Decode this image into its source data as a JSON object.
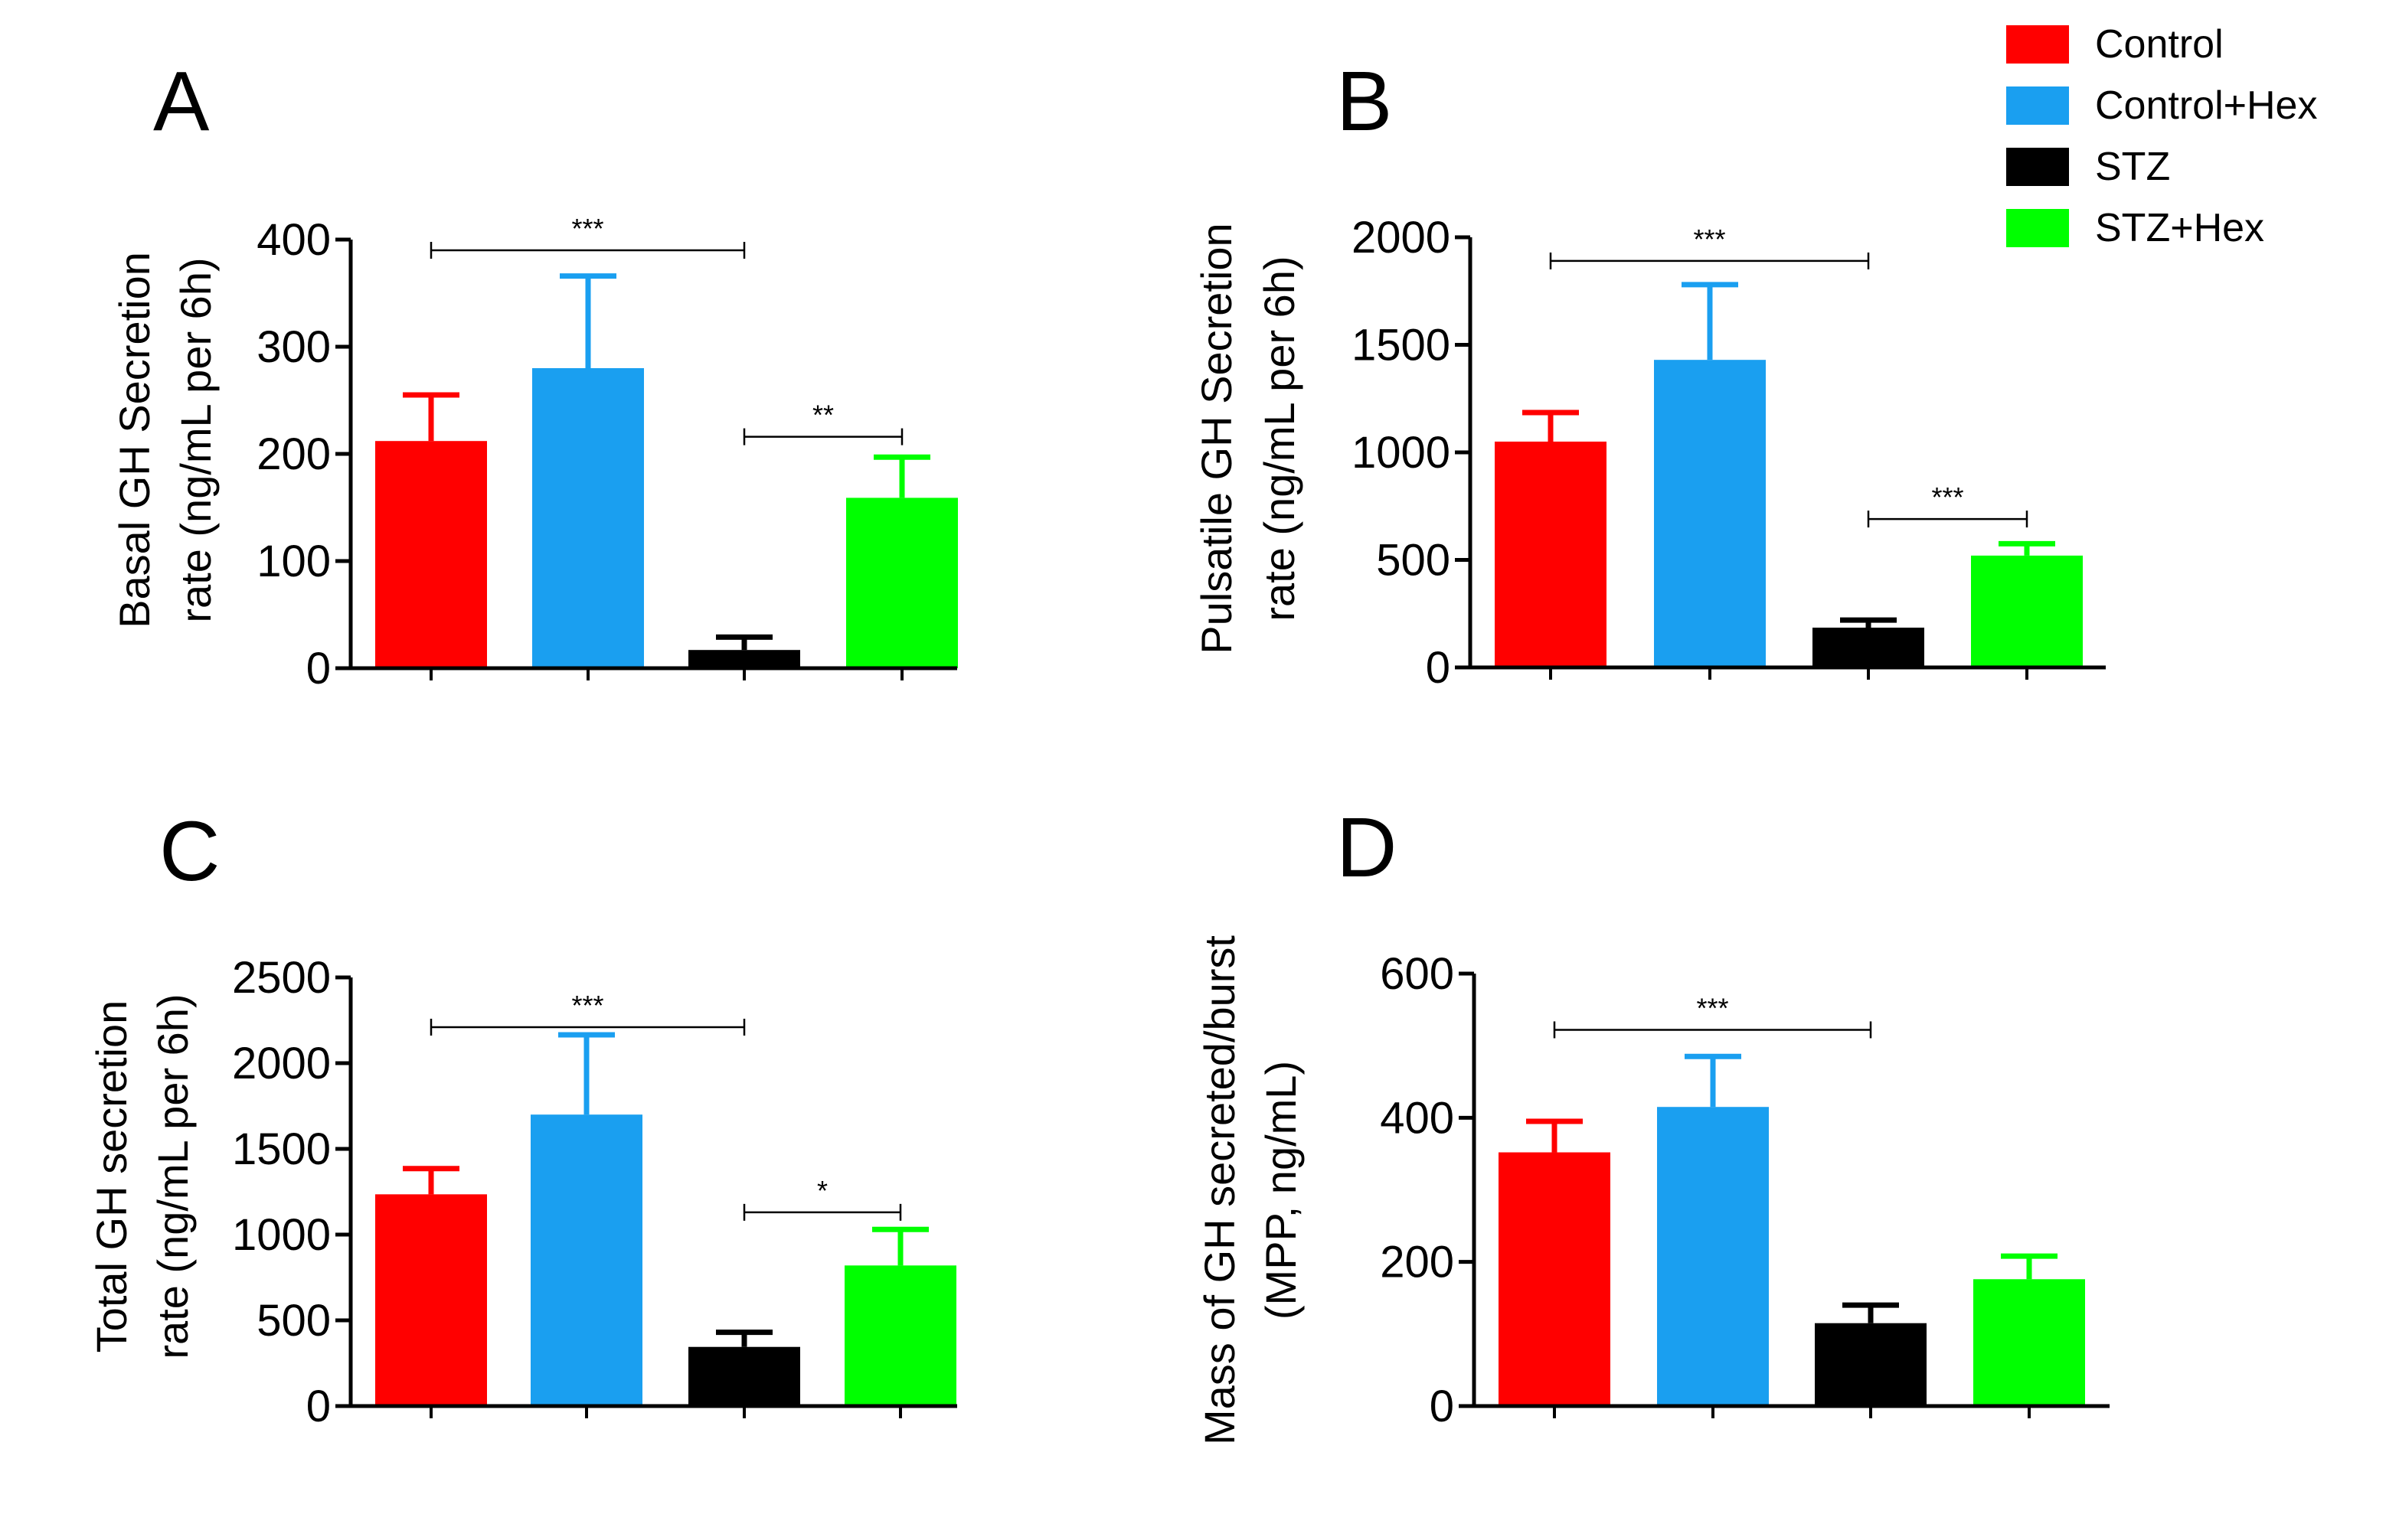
{
  "legend": {
    "items": [
      {
        "label": "Control",
        "color": "#ff0000"
      },
      {
        "label": "Control+Hex",
        "color": "#1a9ff0"
      },
      {
        "label": "STZ",
        "color": "#000000"
      },
      {
        "label": "STZ+Hex",
        "color": "#00ff00"
      }
    ]
  },
  "chart_data": [
    {
      "panel": "A",
      "type": "bar",
      "ylabel": [
        "Basal GH Secretion",
        "rate (ng/mL per 6h)"
      ],
      "ylim": [
        0,
        400
      ],
      "yticks": [
        0,
        100,
        200,
        300,
        400
      ],
      "categories": [
        "Control",
        "Control+Hex",
        "STZ",
        "STZ+Hex"
      ],
      "values": [
        212,
        280,
        17,
        159
      ],
      "errors": [
        43,
        86,
        12,
        38
      ],
      "significance": [
        {
          "from": 0,
          "to": 2,
          "label": "***",
          "level": 390
        },
        {
          "from": 2,
          "to": 3,
          "label": "**",
          "level": 216
        }
      ]
    },
    {
      "panel": "B",
      "type": "bar",
      "ylabel": [
        "Pulsatile GH Secretion",
        "rate (ng/mL per 6h)"
      ],
      "ylim": [
        0,
        2000
      ],
      "yticks": [
        0,
        500,
        1000,
        1500,
        2000
      ],
      "categories": [
        "Control",
        "Control+Hex",
        "STZ",
        "STZ+Hex"
      ],
      "values": [
        1050,
        1430,
        185,
        520
      ],
      "errors": [
        135,
        350,
        35,
        55
      ],
      "significance": [
        {
          "from": 0,
          "to": 2,
          "label": "***",
          "level": 1890
        },
        {
          "from": 2,
          "to": 3,
          "label": "***",
          "level": 690
        }
      ]
    },
    {
      "panel": "C",
      "type": "bar",
      "ylabel": [
        "Total GH secretion",
        "rate (ng/mL per 6h)"
      ],
      "ylim": [
        0,
        2500
      ],
      "yticks": [
        0,
        500,
        1000,
        1500,
        2000,
        2500
      ],
      "categories": [
        "Control",
        "Control+Hex",
        "STZ",
        "STZ+Hex"
      ],
      "values": [
        1235,
        1700,
        345,
        820
      ],
      "errors": [
        150,
        465,
        85,
        210
      ],
      "significance": [
        {
          "from": 0,
          "to": 2,
          "label": "***",
          "level": 2210
        },
        {
          "from": 2,
          "to": 3,
          "label": "*",
          "level": 1130
        }
      ]
    },
    {
      "panel": "D",
      "type": "bar",
      "ylabel": [
        "Mass of GH secreted/burst",
        "(MPP, ng/mL)"
      ],
      "ylim": [
        0,
        600
      ],
      "yticks": [
        0,
        200,
        400,
        600
      ],
      "categories": [
        "Control",
        "Control+Hex",
        "STZ",
        "STZ+Hex"
      ],
      "values": [
        352,
        415,
        115,
        176
      ],
      "errors": [
        43,
        70,
        25,
        32
      ],
      "significance": [
        {
          "from": 0,
          "to": 2,
          "label": "***",
          "level": 522
        }
      ]
    }
  ]
}
